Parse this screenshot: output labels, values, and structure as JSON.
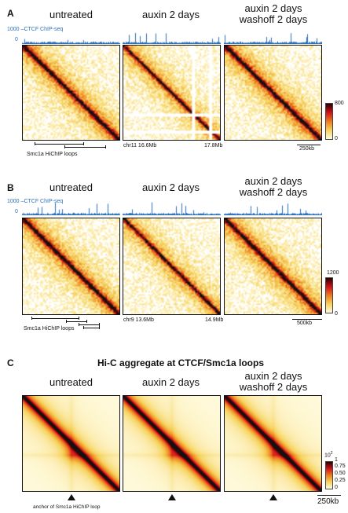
{
  "panelA": {
    "letter": "A",
    "titles": [
      "untreated",
      "auxin 2 days",
      "auxin 2 days\nwashoff 2 days"
    ],
    "chip_max": "1000",
    "chip_label": "CTCF ChIP-seq",
    "chip_zero": "0",
    "loops_label": "Smc1a HiChIP loops",
    "chr_start": "chr11 16.6Mb",
    "chr_end": "17.8Mb",
    "scale": "250kb",
    "cbar_max": "800",
    "cbar_min": "0"
  },
  "panelB": {
    "letter": "B",
    "titles": [
      "untreated",
      "auxin 2 days",
      "auxin 2 days\nwashoff 2 days"
    ],
    "chip_max": "1000",
    "chip_label": "CTCF ChIP-seq",
    "chip_zero": "0",
    "loops_label": "Smc1a HiChIP loops",
    "chr_start": "chr9 13.6Mb",
    "chr_end": "14.9Mb",
    "scale": "500kb",
    "cbar_max": "1200",
    "cbar_min": "0"
  },
  "panelC": {
    "letter": "C",
    "heading": "Hi-C aggregate at CTCF/Smc1a loops",
    "titles": [
      "untreated",
      "auxin 2 days",
      "auxin 2 days\nwashoff 2 days"
    ],
    "anchor_label": "anchor of Smc1a HiChIP loop",
    "scale": "250kb",
    "cbar_exp": "10",
    "cbar_sup": "2",
    "cbar_ticks": [
      "1",
      "0.75",
      "0.50",
      "0.25",
      "0"
    ]
  },
  "colors": {
    "chip": "#2a6fb8",
    "heat_low": "#fffbe0",
    "heat_mid": "#f08a24",
    "heat_high": "#d0101a",
    "heat_max": "#111111"
  }
}
